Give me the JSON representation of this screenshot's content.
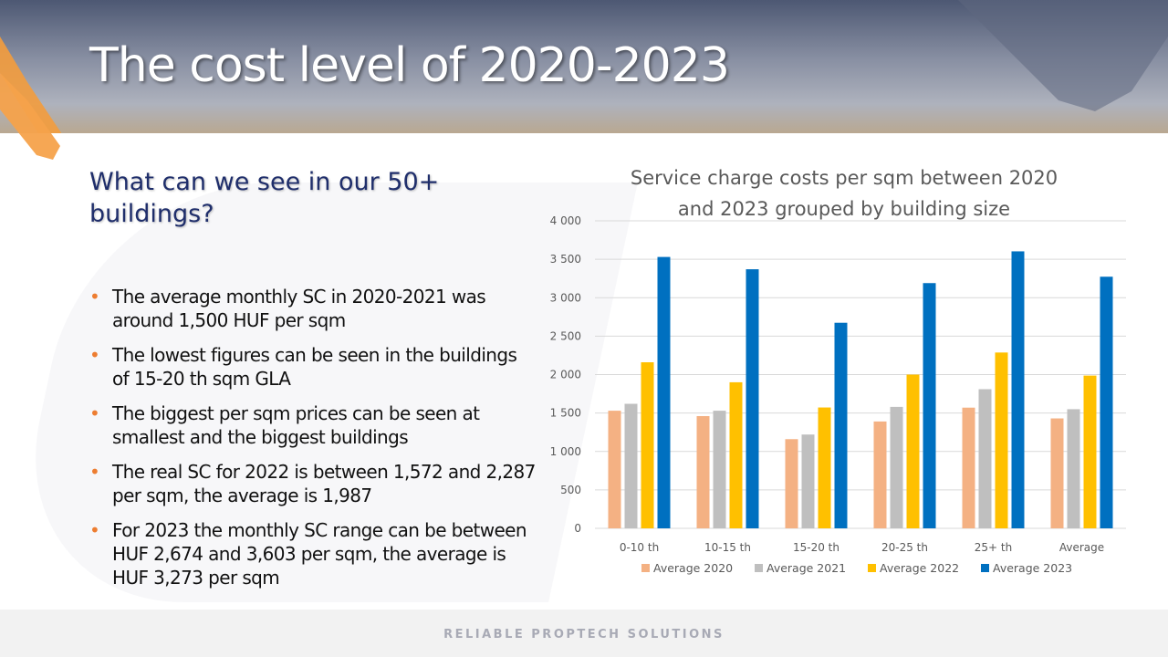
{
  "title": "The cost level of 2020-2023",
  "subtitle": "What can we see in our 50+ buildings?",
  "bullets": [
    "The average monthly SC in 2020-2021 was around 1,500 HUF per sqm",
    "The lowest figures can be seen in the buildings of 15-20 th sqm GLA",
    "The biggest per sqm prices can be seen at smallest and the biggest buildings",
    "The real SC for 2022 is between 1,572 and 2,287 per sqm, the average is 1,987",
    "For 2023 the monthly SC range can be between HUF 2,674 and 3,603 per sqm, the average is HUF 3,273 per sqm"
  ],
  "footer": "RELIABLE PROPTECH SOLUTIONS",
  "colors": {
    "accent_orange": "#ed7d31",
    "title_text": "#ffffff",
    "subtitle_text": "#1f2e6b"
  },
  "chart_data": {
    "type": "bar",
    "title": "Service charge costs per sqm between 2020 and 2023 grouped by building size",
    "title_lines": [
      "Service charge costs per sqm between 2020",
      "and 2023 grouped by building size"
    ],
    "categories": [
      "0-10 th",
      "10-15 th",
      "15-20 th",
      "20-25 th",
      "25+ th",
      "Average"
    ],
    "series": [
      {
        "name": "Average 2020",
        "color": "#f4b183",
        "values": [
          1530,
          1460,
          1160,
          1390,
          1570,
          1430
        ]
      },
      {
        "name": "Average 2021",
        "color": "#bfbfbf",
        "values": [
          1620,
          1530,
          1220,
          1580,
          1810,
          1550
        ]
      },
      {
        "name": "Average 2022",
        "color": "#ffc000",
        "values": [
          2160,
          1900,
          1572,
          2000,
          2287,
          1987
        ]
      },
      {
        "name": "Average 2023",
        "color": "#0070c0",
        "values": [
          3530,
          3370,
          2674,
          3190,
          3603,
          3273
        ]
      }
    ],
    "ylim": [
      0,
      4000
    ],
    "yticks": [
      0,
      500,
      1000,
      1500,
      2000,
      2500,
      3000,
      3500,
      4000
    ],
    "ytick_labels": [
      "0",
      "500",
      "1 000",
      "1 500",
      "2 000",
      "2 500",
      "3 000",
      "3 500",
      "4 000"
    ],
    "grid": true,
    "legend": "bottom",
    "xlabel": "",
    "ylabel": ""
  }
}
